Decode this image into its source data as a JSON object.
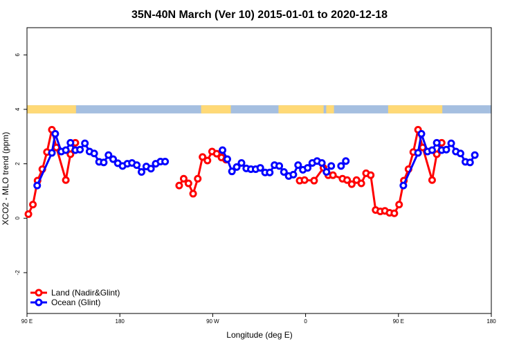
{
  "chart_data": {
    "type": "line",
    "title": "35N-40N March (Ver 10)   2015-01-01 to 2020-12-18",
    "xlabel": "Longitude (deg E)",
    "ylabel": "XCO2 - MLO trend (ppm)",
    "xlim": [
      90,
      450
    ],
    "ylim": [
      -3.5,
      7
    ],
    "x_ticks": [
      90,
      162,
      234,
      306,
      378,
      450
    ],
    "x_tick_labels": [
      "90 E",
      "180",
      "90 W",
      "0",
      "90 E",
      "180"
    ],
    "y_ticks": [
      -2,
      0,
      2,
      4,
      6
    ],
    "y_tick_labels": [
      "-2",
      "0",
      "2",
      "4",
      "6"
    ],
    "legend_position": "bottom-left",
    "land_ocean_strip": {
      "y_range": [
        3.85,
        4.15
      ],
      "land_color": "#FFD976",
      "ocean_color": "#A5BFE0"
    },
    "series": [
      {
        "name": "Land (Nadir&Glint)",
        "color": "#FF0000",
        "segments": [
          [
            [
              91.1,
              0.15
            ],
            [
              94.6,
              0.5
            ],
            [
              98.2,
              1.38
            ],
            [
              101.9,
              1.8
            ],
            [
              105.5,
              2.43
            ],
            [
              109.3,
              3.25
            ],
            [
              112.8,
              2.6
            ],
            [
              120.1,
              1.4
            ],
            [
              123.7,
              2.35
            ],
            [
              127.5,
              2.77
            ]
          ],
          [
            [
              208,
              1.2
            ],
            [
              211.5,
              1.45
            ],
            [
              215.2,
              1.28
            ],
            [
              218.8,
              0.9
            ],
            [
              222.4,
              1.45
            ],
            [
              226.1,
              2.25
            ],
            [
              229.9,
              2.12
            ],
            [
              233.5,
              2.45
            ],
            [
              237.1,
              2.37
            ],
            [
              240.8,
              2.23
            ],
            [
              244.3,
              2.15
            ]
          ],
          [
            [
              301.4,
              1.38
            ],
            [
              305.2,
              1.4
            ],
            [
              312.6,
              1.38
            ],
            [
              319.9,
              1.85
            ],
            [
              323.6,
              1.58
            ],
            [
              327.2,
              1.58
            ],
            [
              334.6,
              1.45
            ],
            [
              338.2,
              1.4
            ],
            [
              341.8,
              1.25
            ],
            [
              345.5,
              1.4
            ],
            [
              349.2,
              1.28
            ],
            [
              352.9,
              1.65
            ],
            [
              356.5,
              1.58
            ],
            [
              360.3,
              0.3
            ],
            [
              363.9,
              0.25
            ],
            [
              367.5,
              0.27
            ],
            [
              371.1,
              0.2
            ],
            [
              374.8,
              0.18
            ],
            [
              378.5,
              0.5
            ],
            [
              382.2,
              1.38
            ],
            [
              385.8,
              1.8
            ],
            [
              389.5,
              2.43
            ],
            [
              393.2,
              3.25
            ],
            [
              396.8,
              2.6
            ],
            [
              404.1,
              1.4
            ],
            [
              407.7,
              2.35
            ],
            [
              411.5,
              2.77
            ]
          ]
        ]
      },
      {
        "name": "Ocean (Glint)",
        "color": "#0000FF",
        "segments": [
          [
            [
              97.9,
              1.2
            ],
            [
              109.3,
              2.4
            ],
            [
              111.9,
              3.1
            ],
            [
              116.6,
              2.45
            ],
            [
              120.1,
              2.5
            ],
            [
              123.7,
              2.77
            ],
            [
              127.5,
              2.5
            ],
            [
              131.1,
              2.52
            ],
            [
              134.9,
              2.75
            ],
            [
              138.5,
              2.45
            ],
            [
              142.1,
              2.38
            ],
            [
              145.9,
              2.07
            ],
            [
              149.5,
              2.05
            ],
            [
              153.2,
              2.32
            ],
            [
              156.8,
              2.17
            ],
            [
              160.4,
              2.02
            ],
            [
              164.1,
              1.92
            ],
            [
              167.8,
              2.0
            ],
            [
              171.4,
              2.03
            ],
            [
              175.1,
              1.95
            ],
            [
              178.8,
              1.7
            ],
            [
              182.5,
              1.9
            ],
            [
              186.1,
              1.82
            ],
            [
              189.8,
              2.0
            ],
            [
              193.5,
              2.08
            ],
            [
              197.1,
              2.08
            ]
          ],
          [
            [
              241.6,
              2.5
            ],
            [
              245.3,
              2.17
            ],
            [
              248.9,
              1.72
            ],
            [
              252.6,
              1.88
            ],
            [
              256.3,
              2.03
            ],
            [
              260.0,
              1.83
            ],
            [
              263.6,
              1.8
            ],
            [
              267.3,
              1.8
            ],
            [
              270.9,
              1.85
            ],
            [
              274.6,
              1.68
            ],
            [
              278.2,
              1.68
            ],
            [
              281.9,
              1.95
            ],
            [
              285.6,
              1.92
            ],
            [
              289.2,
              1.7
            ],
            [
              292.9,
              1.55
            ],
            [
              296.5,
              1.6
            ],
            [
              300.2,
              1.95
            ],
            [
              303.9,
              1.78
            ],
            [
              307.6,
              1.85
            ],
            [
              311.2,
              2.03
            ],
            [
              314.9,
              2.1
            ],
            [
              318.6,
              2.03
            ],
            [
              322.2,
              1.7
            ],
            [
              325.9,
              1.92
            ]
          ],
          [
            [
              333.5,
              1.92
            ],
            [
              337.2,
              2.1
            ]
          ],
          [
            [
              381.8,
              1.2
            ],
            [
              393.2,
              2.4
            ],
            [
              395.8,
              3.1
            ],
            [
              400.5,
              2.45
            ],
            [
              404.1,
              2.5
            ],
            [
              407.7,
              2.77
            ],
            [
              411.5,
              2.5
            ],
            [
              415.1,
              2.52
            ],
            [
              418.9,
              2.75
            ],
            [
              422.5,
              2.45
            ],
            [
              426.1,
              2.38
            ],
            [
              429.9,
              2.07
            ],
            [
              433.5,
              2.05
            ],
            [
              437.2,
              2.32
            ]
          ]
        ]
      }
    ]
  }
}
